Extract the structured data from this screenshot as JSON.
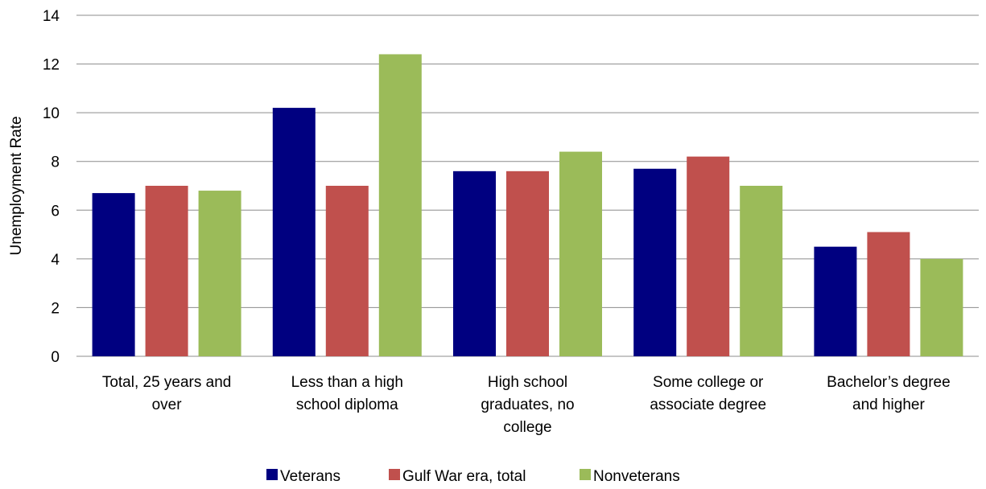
{
  "chart_data": {
    "type": "bar",
    "ylabel": "Unemployment Rate",
    "ylim": [
      0,
      14
    ],
    "yticks": [
      0,
      2,
      4,
      6,
      8,
      10,
      12,
      14
    ],
    "grid": true,
    "legend_position": "bottom",
    "categories": [
      [
        "Total, 25 years and",
        "over"
      ],
      [
        "Less than a high",
        "school diploma"
      ],
      [
        "High school",
        "graduates, no",
        "college"
      ],
      [
        "Some college or",
        "associate degree"
      ],
      [
        "Bachelor’s degree",
        "and higher"
      ]
    ],
    "series": [
      {
        "name": "Veterans",
        "color": "#000080",
        "values": [
          6.7,
          10.2,
          7.6,
          7.7,
          4.5
        ]
      },
      {
        "name": "Gulf War era, total",
        "color": "#C0504D",
        "values": [
          7.0,
          7.0,
          7.6,
          8.2,
          5.1
        ]
      },
      {
        "name": "Nonveterans",
        "color": "#9BBB59",
        "values": [
          6.8,
          12.4,
          8.4,
          7.0,
          4.0
        ]
      }
    ]
  }
}
